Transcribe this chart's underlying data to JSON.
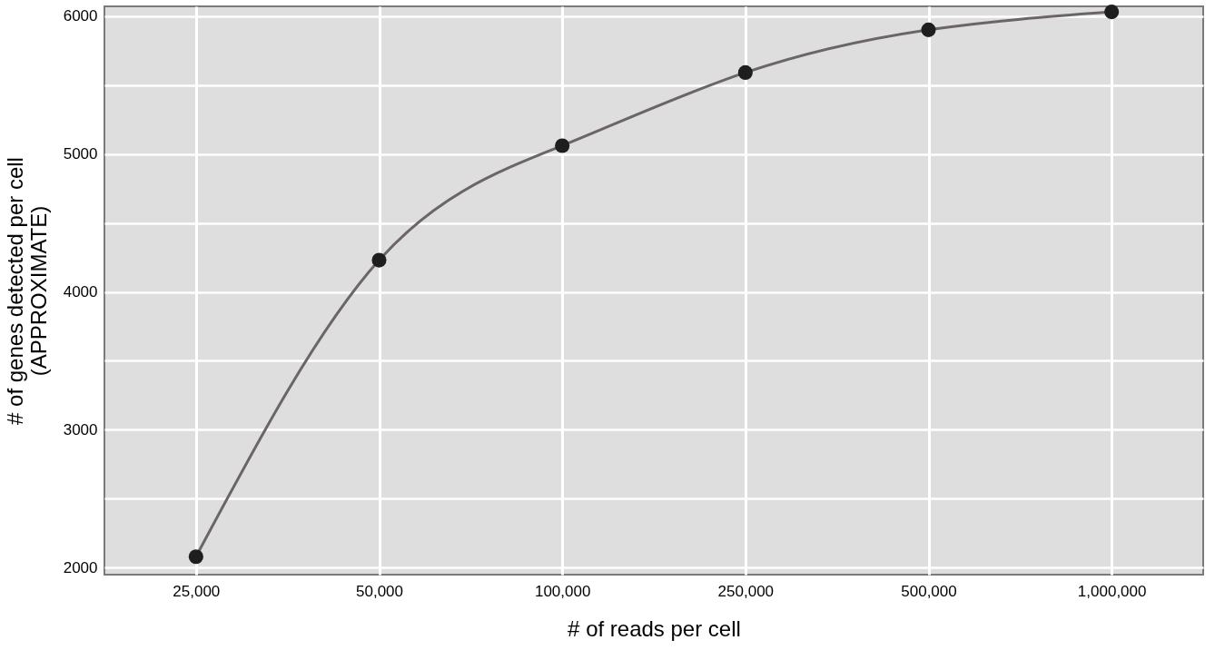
{
  "chart_data": {
    "type": "line",
    "xlabel": "# of reads per cell",
    "ylabel": [
      "# of genes detected per cell",
      "(APPROXIMATE)"
    ],
    "categories": [
      "25,000",
      "50,000",
      "100,000",
      "250,000",
      "500,000",
      "1,000,000"
    ],
    "series": [
      {
        "color": "#6b6567",
        "values": [
          2080,
          4230,
          5060,
          5590,
          5900,
          6030
        ]
      }
    ],
    "marker": "circle",
    "ylim": [
      1950,
      6070
    ],
    "yticks": [
      2000,
      {
        "value": 2500,
        "label": null
      },
      3000,
      {
        "value": 3500,
        "label": null
      },
      4000,
      {
        "value": 4500,
        "label": null
      },
      5000,
      {
        "value": 5500,
        "label": null
      },
      6000
    ],
    "grid": true,
    "legend": false
  }
}
